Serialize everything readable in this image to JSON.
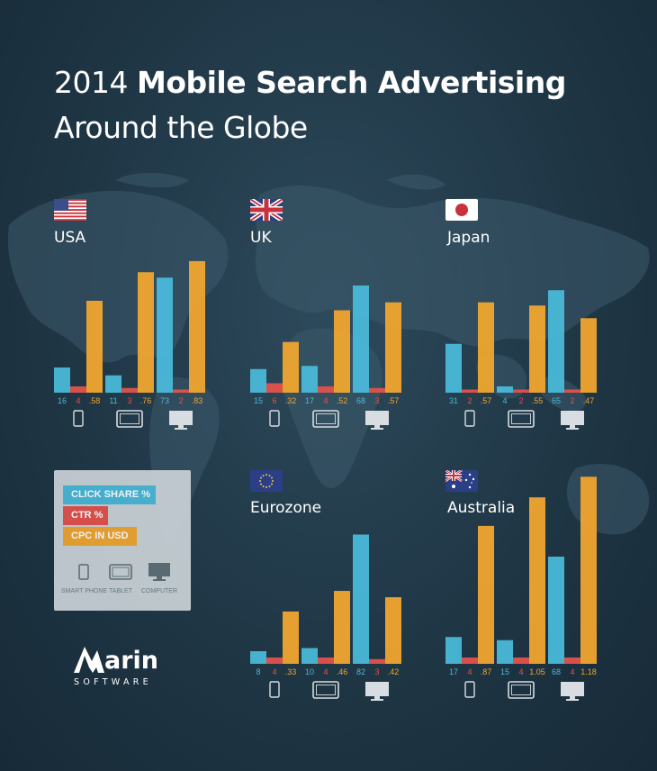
{
  "title": {
    "year": "2014",
    "bold": "Mobile Search Advertising",
    "line2": "Around the Globe"
  },
  "colors": {
    "click_share": "#4ab8d8",
    "ctr": "#e2524b",
    "cpc": "#f0a530",
    "background": "#1f3645"
  },
  "legend": {
    "items": [
      {
        "label": "CLICK SHARE %",
        "color": "#4ab8d8"
      },
      {
        "label": "CTR %",
        "color": "#e2524b"
      },
      {
        "label": "CPC IN USD",
        "color": "#f0a530"
      }
    ],
    "devices": [
      {
        "label": "SMART PHONE",
        "icon": "smartphone-icon"
      },
      {
        "label": "TABLET",
        "icon": "tablet-icon"
      },
      {
        "label": "COMPUTER",
        "icon": "computer-icon"
      }
    ]
  },
  "logo": {
    "word": "arin",
    "sub": "SOFTWARE"
  },
  "chart_data": [
    {
      "type": "bar",
      "title": "USA",
      "flag": "usa-flag-icon",
      "categories": [
        "Smart Phone",
        "Tablet",
        "Computer"
      ],
      "series": [
        {
          "name": "CLICK SHARE %",
          "values": [
            16,
            11,
            73
          ],
          "labels": [
            "16",
            "11",
            "73"
          ]
        },
        {
          "name": "CTR %",
          "values": [
            4,
            3,
            2
          ],
          "labels": [
            "4",
            "3",
            "2"
          ]
        },
        {
          "name": "CPC IN USD",
          "values": [
            0.58,
            0.76,
            0.83
          ],
          "labels": [
            ".58",
            ".76",
            ".83"
          ]
        }
      ]
    },
    {
      "type": "bar",
      "title": "UK",
      "flag": "uk-flag-icon",
      "categories": [
        "Smart Phone",
        "Tablet",
        "Computer"
      ],
      "series": [
        {
          "name": "CLICK SHARE %",
          "values": [
            15,
            17,
            68
          ],
          "labels": [
            "15",
            "17",
            "68"
          ]
        },
        {
          "name": "CTR %",
          "values": [
            6,
            4,
            3
          ],
          "labels": [
            "6",
            "4",
            "3"
          ]
        },
        {
          "name": "CPC IN USD",
          "values": [
            0.32,
            0.52,
            0.57
          ],
          "labels": [
            ".32",
            ".52",
            ".57"
          ]
        }
      ]
    },
    {
      "type": "bar",
      "title": "Japan",
      "flag": "japan-flag-icon",
      "categories": [
        "Smart Phone",
        "Tablet",
        "Computer"
      ],
      "series": [
        {
          "name": "CLICK SHARE %",
          "values": [
            31,
            4,
            65
          ],
          "labels": [
            "31",
            "4",
            "65"
          ]
        },
        {
          "name": "CTR %",
          "values": [
            2,
            2,
            2
          ],
          "labels": [
            "2",
            "2",
            "2"
          ]
        },
        {
          "name": "CPC IN USD",
          "values": [
            0.57,
            0.55,
            0.47
          ],
          "labels": [
            ".57",
            ".55",
            ".47"
          ]
        }
      ]
    },
    {
      "type": "bar",
      "title": "Eurozone",
      "flag": "eu-flag-icon",
      "categories": [
        "Smart Phone",
        "Tablet",
        "Computer"
      ],
      "series": [
        {
          "name": "CLICK SHARE %",
          "values": [
            8,
            10,
            82
          ],
          "labels": [
            "8",
            "10",
            "82"
          ]
        },
        {
          "name": "CTR %",
          "values": [
            4,
            4,
            3
          ],
          "labels": [
            "4",
            "4",
            "3"
          ]
        },
        {
          "name": "CPC IN USD",
          "values": [
            0.33,
            0.46,
            0.42
          ],
          "labels": [
            ".33",
            ".46",
            ".42"
          ]
        }
      ]
    },
    {
      "type": "bar",
      "title": "Australia",
      "flag": "australia-flag-icon",
      "categories": [
        "Smart Phone",
        "Tablet",
        "Computer"
      ],
      "series": [
        {
          "name": "CLICK SHARE %",
          "values": [
            17,
            15,
            68
          ],
          "labels": [
            "17",
            "15",
            "68"
          ]
        },
        {
          "name": "CTR %",
          "values": [
            4,
            4,
            4
          ],
          "labels": [
            "4",
            "4",
            "4"
          ]
        },
        {
          "name": "CPC IN USD",
          "values": [
            0.87,
            1.05,
            1.18
          ],
          "labels": [
            ".87",
            "1.05",
            "1.18"
          ]
        }
      ]
    }
  ]
}
